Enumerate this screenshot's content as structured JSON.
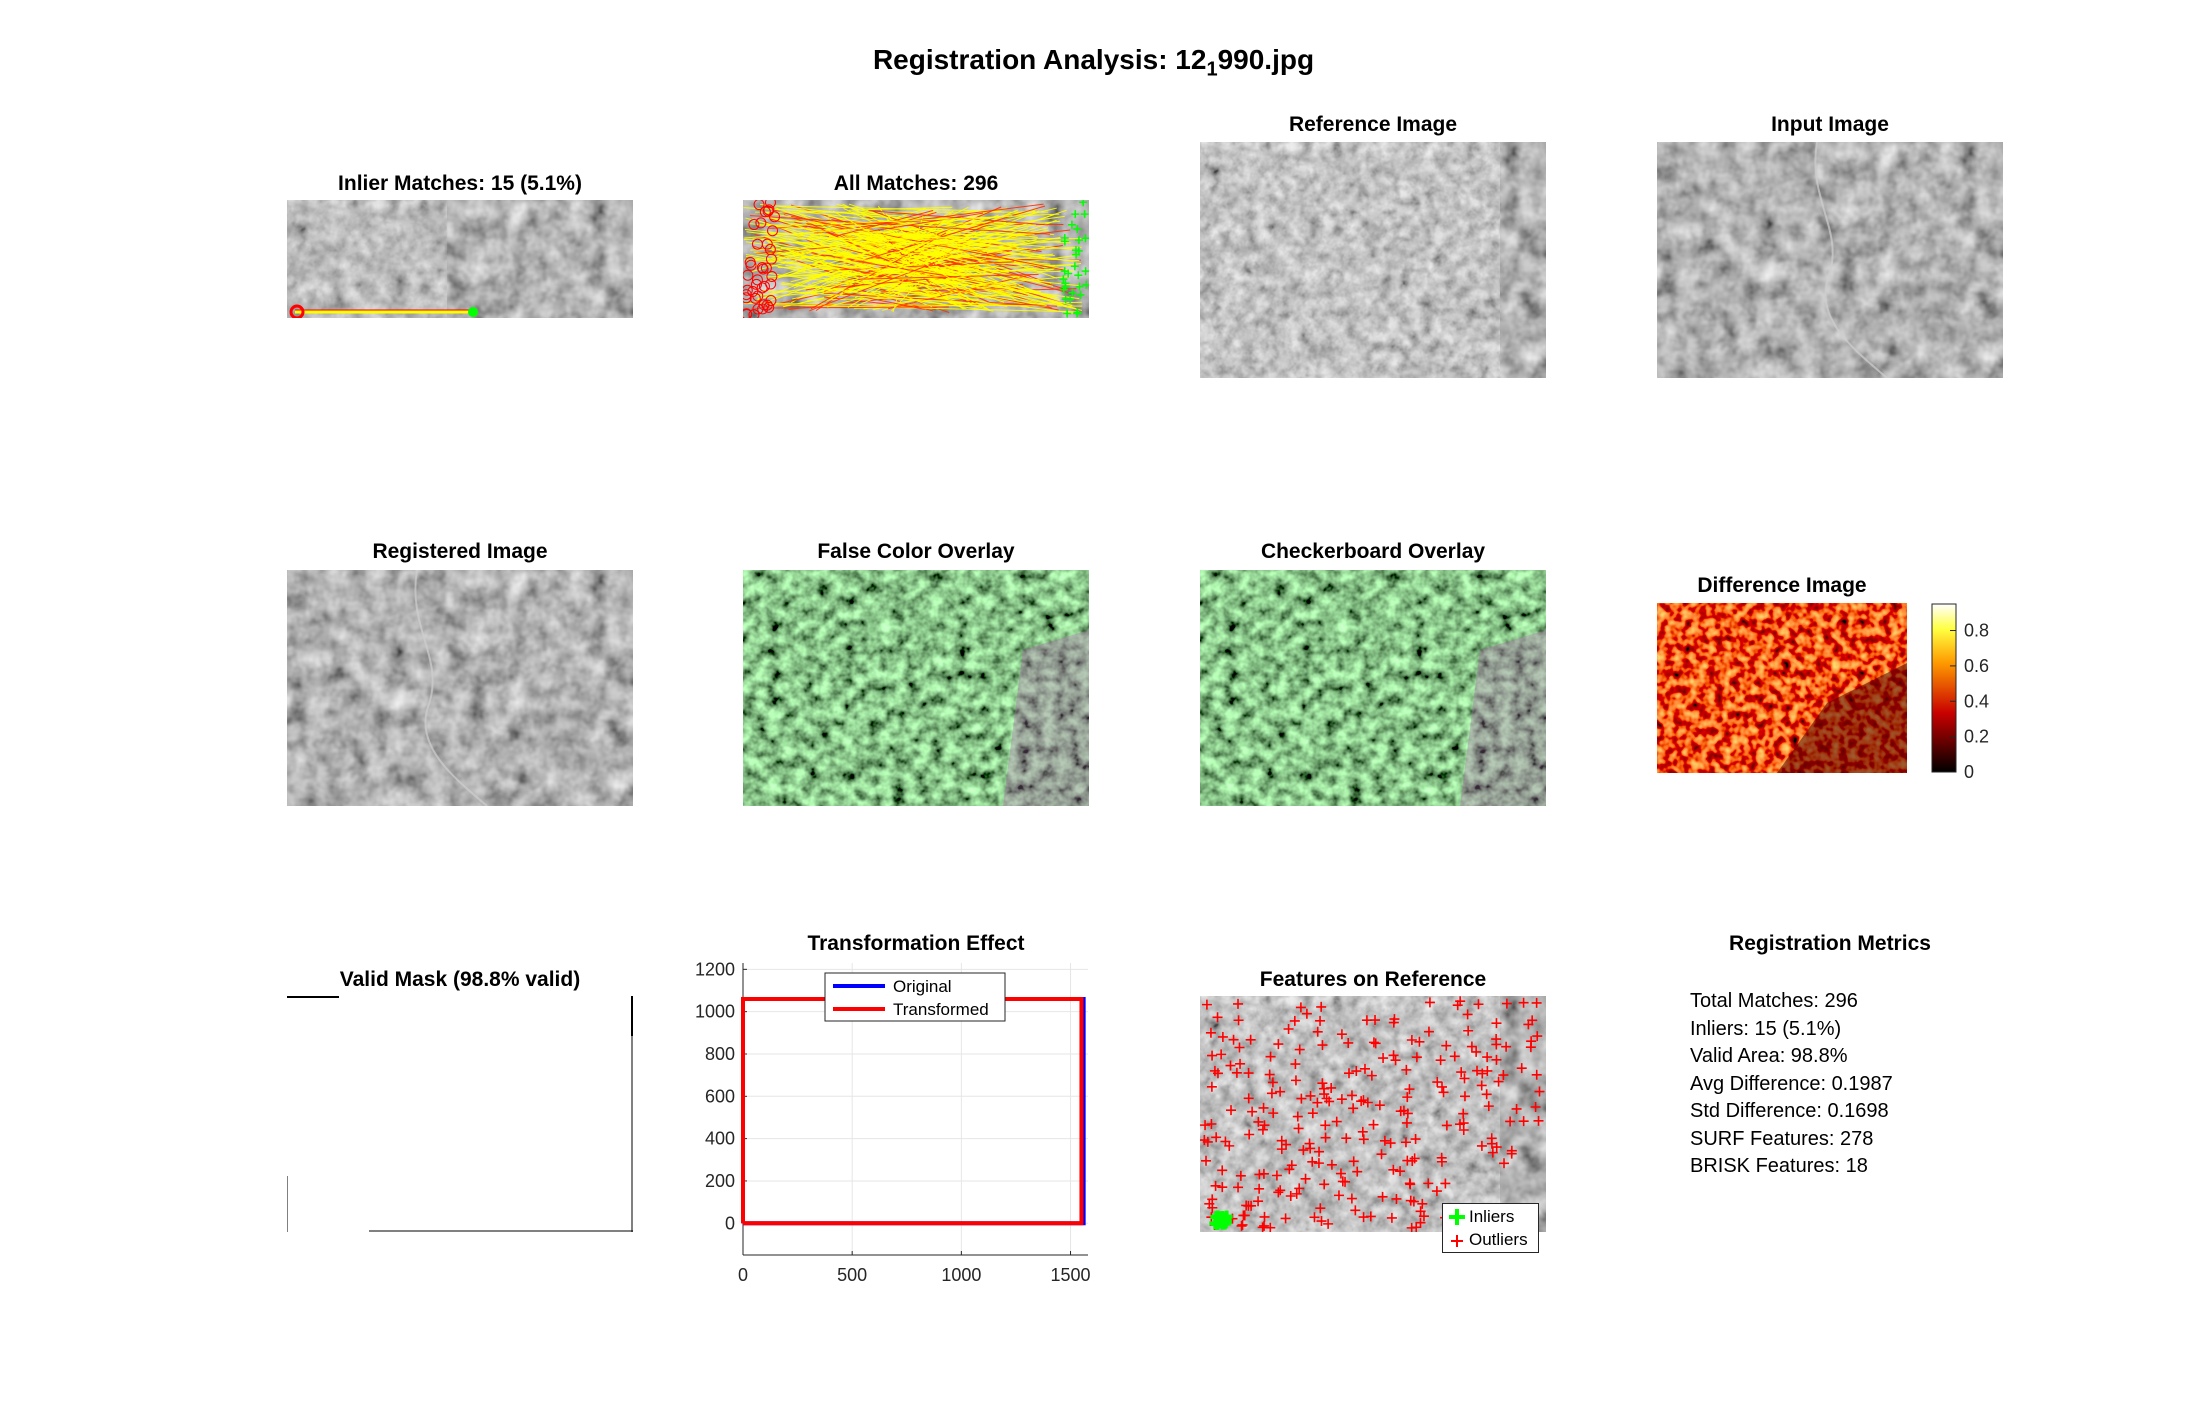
{
  "suptitle": {
    "prefix": "Registration Analysis: 12",
    "subscript": "1",
    "suffix": "990.jpg"
  },
  "panels": {
    "inlier_matches": "Inlier Matches: 15 (5.1%)",
    "all_matches": "All Matches: 296",
    "reference_image": "Reference Image",
    "input_image": "Input Image",
    "registered_image": "Registered Image",
    "false_color_overlay": "False Color Overlay",
    "checkerboard_overlay": "Checkerboard Overlay",
    "difference_image": "Difference Image",
    "valid_mask": "Valid Mask (98.8% valid)",
    "transformation_effect": "Transformation Effect",
    "features_on_reference": "Features on Reference",
    "registration_metrics": "Registration Metrics"
  },
  "colorbar": {
    "ticks": [
      "0",
      "0.2",
      "0.4",
      "0.6",
      "0.8"
    ],
    "colormap": "hot",
    "range": [
      0,
      0.95
    ]
  },
  "features_legend": {
    "inliers": "Inliers",
    "outliers": "Outliers",
    "inlier_color": "#00ff00",
    "outlier_color": "#ff0000"
  },
  "metrics": [
    "Total Matches: 296",
    "Inliers: 15 (5.1%)",
    "Valid Area: 98.8%",
    "Avg Difference: 0.1987",
    "Std Difference: 0.1698",
    "SURF Features: 278",
    "BRISK Features: 18"
  ],
  "chart_data": {
    "type": "line",
    "title": "Transformation Effect",
    "xlim": [
      0,
      1580
    ],
    "ylim": [
      -150,
      1230
    ],
    "xticks": [
      0,
      500,
      1000,
      1500
    ],
    "yticks": [
      0,
      200,
      400,
      600,
      800,
      1000,
      1200
    ],
    "grid": true,
    "legend_position": "top",
    "series": [
      {
        "name": "Original",
        "color": "#0000ff",
        "x": [
          0,
          1560,
          1560,
          0,
          0
        ],
        "y": [
          0,
          0,
          1060,
          1060,
          0
        ]
      },
      {
        "name": "Transformed",
        "color": "#ff0000",
        "x": [
          0,
          1550,
          1550,
          0,
          0
        ],
        "y": [
          0,
          0,
          1060,
          1060,
          0
        ]
      }
    ]
  }
}
